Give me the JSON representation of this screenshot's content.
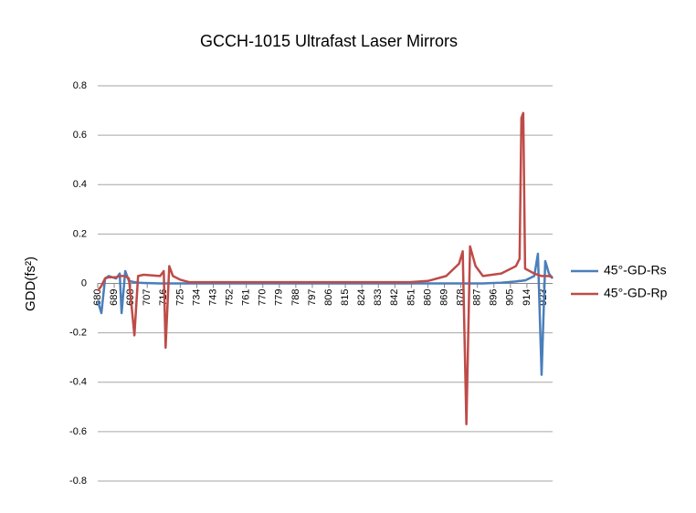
{
  "chart_data": {
    "type": "line",
    "title": "GCCH-1015 Ultrafast Laser Mirrors",
    "y_label": "GDD(fs²)",
    "x": [
      680,
      682,
      684,
      686,
      690,
      692,
      693,
      695,
      697,
      700,
      702,
      705,
      714,
      716,
      717,
      719,
      721,
      725,
      730,
      850,
      860,
      870,
      877,
      879,
      881,
      883,
      886,
      890,
      900,
      908,
      910,
      911,
      912,
      913,
      918,
      920,
      922,
      924,
      926,
      928
    ],
    "series": [
      {
        "name": "45°-GD-Rs",
        "color": "#4a7ebb",
        "values": [
          -0.07,
          -0.12,
          0.02,
          0.03,
          0.02,
          0.04,
          -0.12,
          0.05,
          0.01,
          0.005,
          0.003,
          0.002,
          0,
          0,
          0,
          0,
          0,
          0,
          0,
          0,
          0,
          0,
          0,
          0,
          0,
          0,
          0,
          0,
          0.003,
          0.008,
          0.01,
          0.01,
          0.012,
          0.012,
          0.03,
          0.12,
          -0.37,
          0.09,
          0.04,
          0.02
        ]
      },
      {
        "name": "45°-GD-Rp",
        "color": "#be4b48",
        "values": [
          -0.03,
          -0.01,
          0.02,
          0.025,
          0.025,
          0.03,
          0.03,
          0.03,
          0.02,
          -0.21,
          0.03,
          0.035,
          0.03,
          0.05,
          -0.26,
          0.07,
          0.03,
          0.015,
          0.005,
          0.005,
          0.01,
          0.03,
          0.08,
          0.13,
          -0.57,
          0.15,
          0.07,
          0.03,
          0.04,
          0.07,
          0.1,
          0.67,
          0.69,
          0.06,
          0.04,
          0.035,
          0.03,
          0.03,
          0.03,
          0.025
        ]
      }
    ],
    "xlim": [
      680,
      928
    ],
    "xticks": [
      680,
      689,
      698,
      707,
      716,
      725,
      734,
      743,
      752,
      761,
      770,
      779,
      788,
      797,
      806,
      815,
      824,
      833,
      842,
      851,
      860,
      869,
      878,
      887,
      896,
      905,
      914,
      923
    ],
    "ylim": [
      -0.8,
      0.8
    ],
    "yticks": [
      -0.8,
      -0.6,
      -0.4,
      -0.2,
      0,
      0.2,
      0.4,
      0.6,
      0.8
    ],
    "grid": true,
    "legend": "right"
  }
}
